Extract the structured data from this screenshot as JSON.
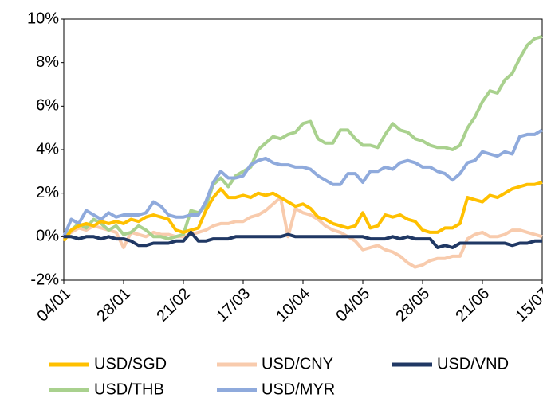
{
  "chart_data": {
    "type": "line",
    "categories": [
      "04/01",
      null,
      null,
      null,
      null,
      null,
      null,
      null,
      "28/01",
      null,
      null,
      null,
      null,
      null,
      null,
      null,
      "21/02",
      null,
      null,
      null,
      null,
      null,
      null,
      null,
      "17/03",
      null,
      null,
      null,
      null,
      null,
      null,
      null,
      "10/04",
      null,
      null,
      null,
      null,
      null,
      null,
      null,
      "04/05",
      null,
      null,
      null,
      null,
      null,
      null,
      null,
      "28/05",
      null,
      null,
      null,
      null,
      null,
      null,
      null,
      "21/06",
      null,
      null,
      null,
      null,
      null,
      null,
      null,
      "15/07"
    ],
    "series": [
      {
        "name": "USD/SGD",
        "color": "#ffc000",
        "values": [
          -0.2,
          0.3,
          0.5,
          0.6,
          0.5,
          0.7,
          0.6,
          0.7,
          0.6,
          0.8,
          0.7,
          0.9,
          1.0,
          0.9,
          0.8,
          0.3,
          0.2,
          0.3,
          0.4,
          1.2,
          1.8,
          2.2,
          1.8,
          1.8,
          1.9,
          1.8,
          2.0,
          1.9,
          2.0,
          1.8,
          1.6,
          1.4,
          1.5,
          1.3,
          0.9,
          0.8,
          0.6,
          0.5,
          0.4,
          0.5,
          1.1,
          0.4,
          0.5,
          1.0,
          0.9,
          1.0,
          0.8,
          0.7,
          0.3,
          0.2,
          0.2,
          0.4,
          0.4,
          0.6,
          1.8,
          1.7,
          1.6,
          1.9,
          1.8,
          2.0,
          2.2,
          2.3,
          2.4,
          2.4,
          2.5
        ]
      },
      {
        "name": "USD/CNY",
        "color": "#f8cbad",
        "values": [
          0,
          0.2,
          0.4,
          0.3,
          0.5,
          0.4,
          0.3,
          0.2,
          -0.5,
          0.2,
          0.1,
          0,
          0.2,
          0.1,
          0.1,
          0,
          0,
          0.1,
          0.2,
          0.3,
          0.5,
          0.6,
          0.6,
          0.7,
          0.7,
          0.9,
          1.0,
          1.2,
          1.5,
          1.8,
          0,
          1.3,
          1.1,
          1.0,
          0.8,
          0.5,
          0.3,
          0.2,
          0,
          -0.2,
          -0.6,
          -0.5,
          -0.4,
          -0.6,
          -0.7,
          -0.9,
          -1.2,
          -1.4,
          -1.3,
          -1.1,
          -1.0,
          -1.0,
          -0.9,
          -0.9,
          -0.1,
          0.1,
          0.2,
          0,
          0,
          0.1,
          0.3,
          0.3,
          0.2,
          0.1,
          0
        ]
      },
      {
        "name": "USD/VND",
        "color": "#203864",
        "values": [
          0,
          0,
          -0.1,
          0,
          0,
          -0.1,
          0,
          -0.1,
          -0.1,
          -0.2,
          -0.4,
          -0.4,
          -0.3,
          -0.3,
          -0.3,
          -0.2,
          -0.2,
          0.2,
          -0.2,
          -0.2,
          -0.1,
          -0.1,
          -0.1,
          0,
          0,
          0,
          0,
          0,
          0,
          0,
          0.1,
          0,
          0,
          0,
          0,
          0,
          0,
          0,
          0,
          0,
          0,
          -0.1,
          -0.1,
          -0.1,
          0,
          -0.1,
          0,
          -0.1,
          -0.1,
          -0.1,
          -0.5,
          -0.4,
          -0.5,
          -0.3,
          -0.3,
          -0.3,
          -0.3,
          -0.3,
          -0.3,
          -0.3,
          -0.4,
          -0.3,
          -0.3,
          -0.2,
          -0.2
        ]
      },
      {
        "name": "USD/THB",
        "color": "#a9d18e",
        "values": [
          0,
          0.3,
          0.6,
          0.4,
          0.8,
          0.6,
          0.3,
          0.5,
          0.1,
          0.2,
          0.5,
          0.3,
          0,
          0,
          -0.1,
          0,
          0.1,
          1.2,
          1.1,
          1.4,
          2.4,
          2.7,
          2.3,
          2.8,
          3.0,
          3.2,
          4.0,
          4.3,
          4.6,
          4.5,
          4.7,
          4.8,
          5.2,
          5.3,
          4.5,
          4.3,
          4.3,
          4.9,
          4.9,
          4.5,
          4.2,
          4.2,
          4.1,
          4.7,
          5.2,
          4.9,
          4.8,
          4.5,
          4.4,
          4.2,
          4.1,
          4.1,
          4.0,
          4.2,
          5.0,
          5.5,
          6.2,
          6.7,
          6.6,
          7.2,
          7.5,
          8.2,
          8.8,
          9.1,
          9.2
        ]
      },
      {
        "name": "USD/MYR",
        "color": "#8faadc",
        "values": [
          0,
          0.8,
          0.6,
          1.2,
          1.0,
          0.8,
          1.1,
          0.9,
          1.0,
          1.0,
          1.0,
          1.1,
          1.6,
          1.4,
          1.0,
          0.9,
          0.9,
          1.0,
          1.0,
          1.6,
          2.5,
          3.0,
          2.7,
          2.7,
          2.8,
          3.3,
          3.5,
          3.6,
          3.4,
          3.3,
          3.3,
          3.2,
          3.2,
          3.1,
          2.8,
          2.6,
          2.4,
          2.4,
          2.9,
          2.9,
          2.5,
          3.0,
          3.0,
          3.2,
          3.1,
          3.4,
          3.5,
          3.4,
          3.2,
          3.2,
          3.0,
          2.9,
          2.6,
          2.9,
          3.4,
          3.5,
          3.9,
          3.8,
          3.7,
          3.9,
          3.8,
          4.6,
          4.7,
          4.7,
          4.9
        ]
      }
    ],
    "ylim": [
      -2,
      10
    ],
    "yticks": [
      {
        "value": -2,
        "label": "-2%"
      },
      {
        "value": 0,
        "label": "0%"
      },
      {
        "value": 2,
        "label": "2%"
      },
      {
        "value": 4,
        "label": "4%"
      },
      {
        "value": 6,
        "label": "6%"
      },
      {
        "value": 8,
        "label": "8%"
      },
      {
        "value": 10,
        "label": "10%"
      }
    ],
    "grid": false
  }
}
